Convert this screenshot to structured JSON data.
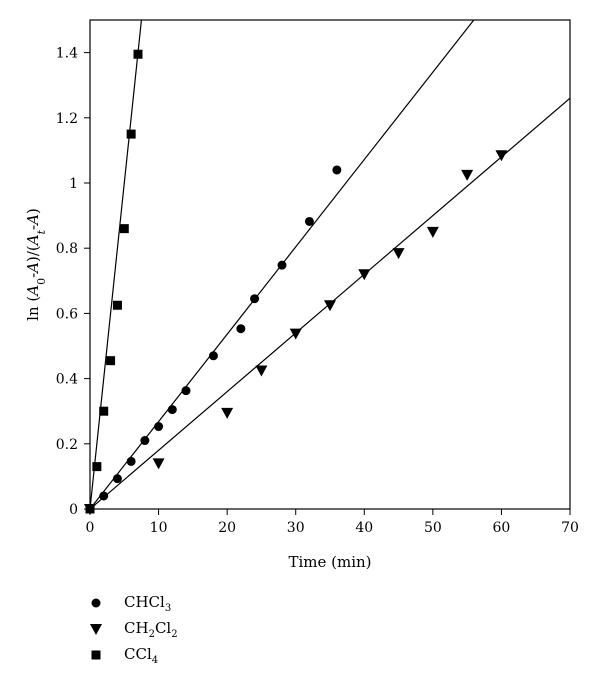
{
  "chart_data": {
    "type": "scatter",
    "xlabel": "Time (min)",
    "ylabel_parts": [
      "ln (",
      "A",
      "0",
      "-",
      "A",
      ")/(",
      "A",
      "t",
      "-",
      "A",
      ")"
    ],
    "xlim": [
      0,
      70
    ],
    "ylim": [
      0,
      1.5
    ],
    "x_ticks": [
      "0",
      "10",
      "20",
      "30",
      "40",
      "50",
      "60",
      "70"
    ],
    "y_ticks": [
      "0",
      "0.2",
      "0.4",
      "0.6",
      "0.8",
      "1",
      "1.2",
      "1.4"
    ],
    "grid": false,
    "legend_position": "bottom-left, below plot",
    "series": [
      {
        "name": "CHCl3",
        "name_parts": [
          "CHCl",
          "3",
          ""
        ],
        "marker": "circle",
        "x": [
          0,
          2,
          4,
          6,
          8,
          10,
          12,
          14,
          18,
          22,
          24,
          28,
          32,
          36
        ],
        "y": [
          0.0,
          0.04,
          0.093,
          0.146,
          0.21,
          0.253,
          0.305,
          0.363,
          0.47,
          0.553,
          0.645,
          0.748,
          0.882,
          1.04
        ],
        "fit_slope": 0.0268
      },
      {
        "name": "CH2Cl2",
        "name_parts": [
          "CH",
          "2",
          "Cl",
          "2",
          ""
        ],
        "marker": "triangle-down",
        "x": [
          0,
          10,
          20,
          25,
          30,
          35,
          40,
          45,
          50,
          55,
          60
        ],
        "y": [
          0.0,
          0.14,
          0.295,
          0.425,
          0.538,
          0.625,
          0.72,
          0.785,
          0.85,
          1.025,
          1.085
        ],
        "fit_slope": 0.018
      },
      {
        "name": "CCl4",
        "name_parts": [
          "CCl",
          "4",
          ""
        ],
        "marker": "square",
        "x": [
          0,
          1,
          2,
          3,
          4,
          5,
          6,
          7
        ],
        "y": [
          0.0,
          0.13,
          0.3,
          0.455,
          0.625,
          0.86,
          1.15,
          1.395
        ],
        "fit_slope": 0.2
      }
    ]
  }
}
